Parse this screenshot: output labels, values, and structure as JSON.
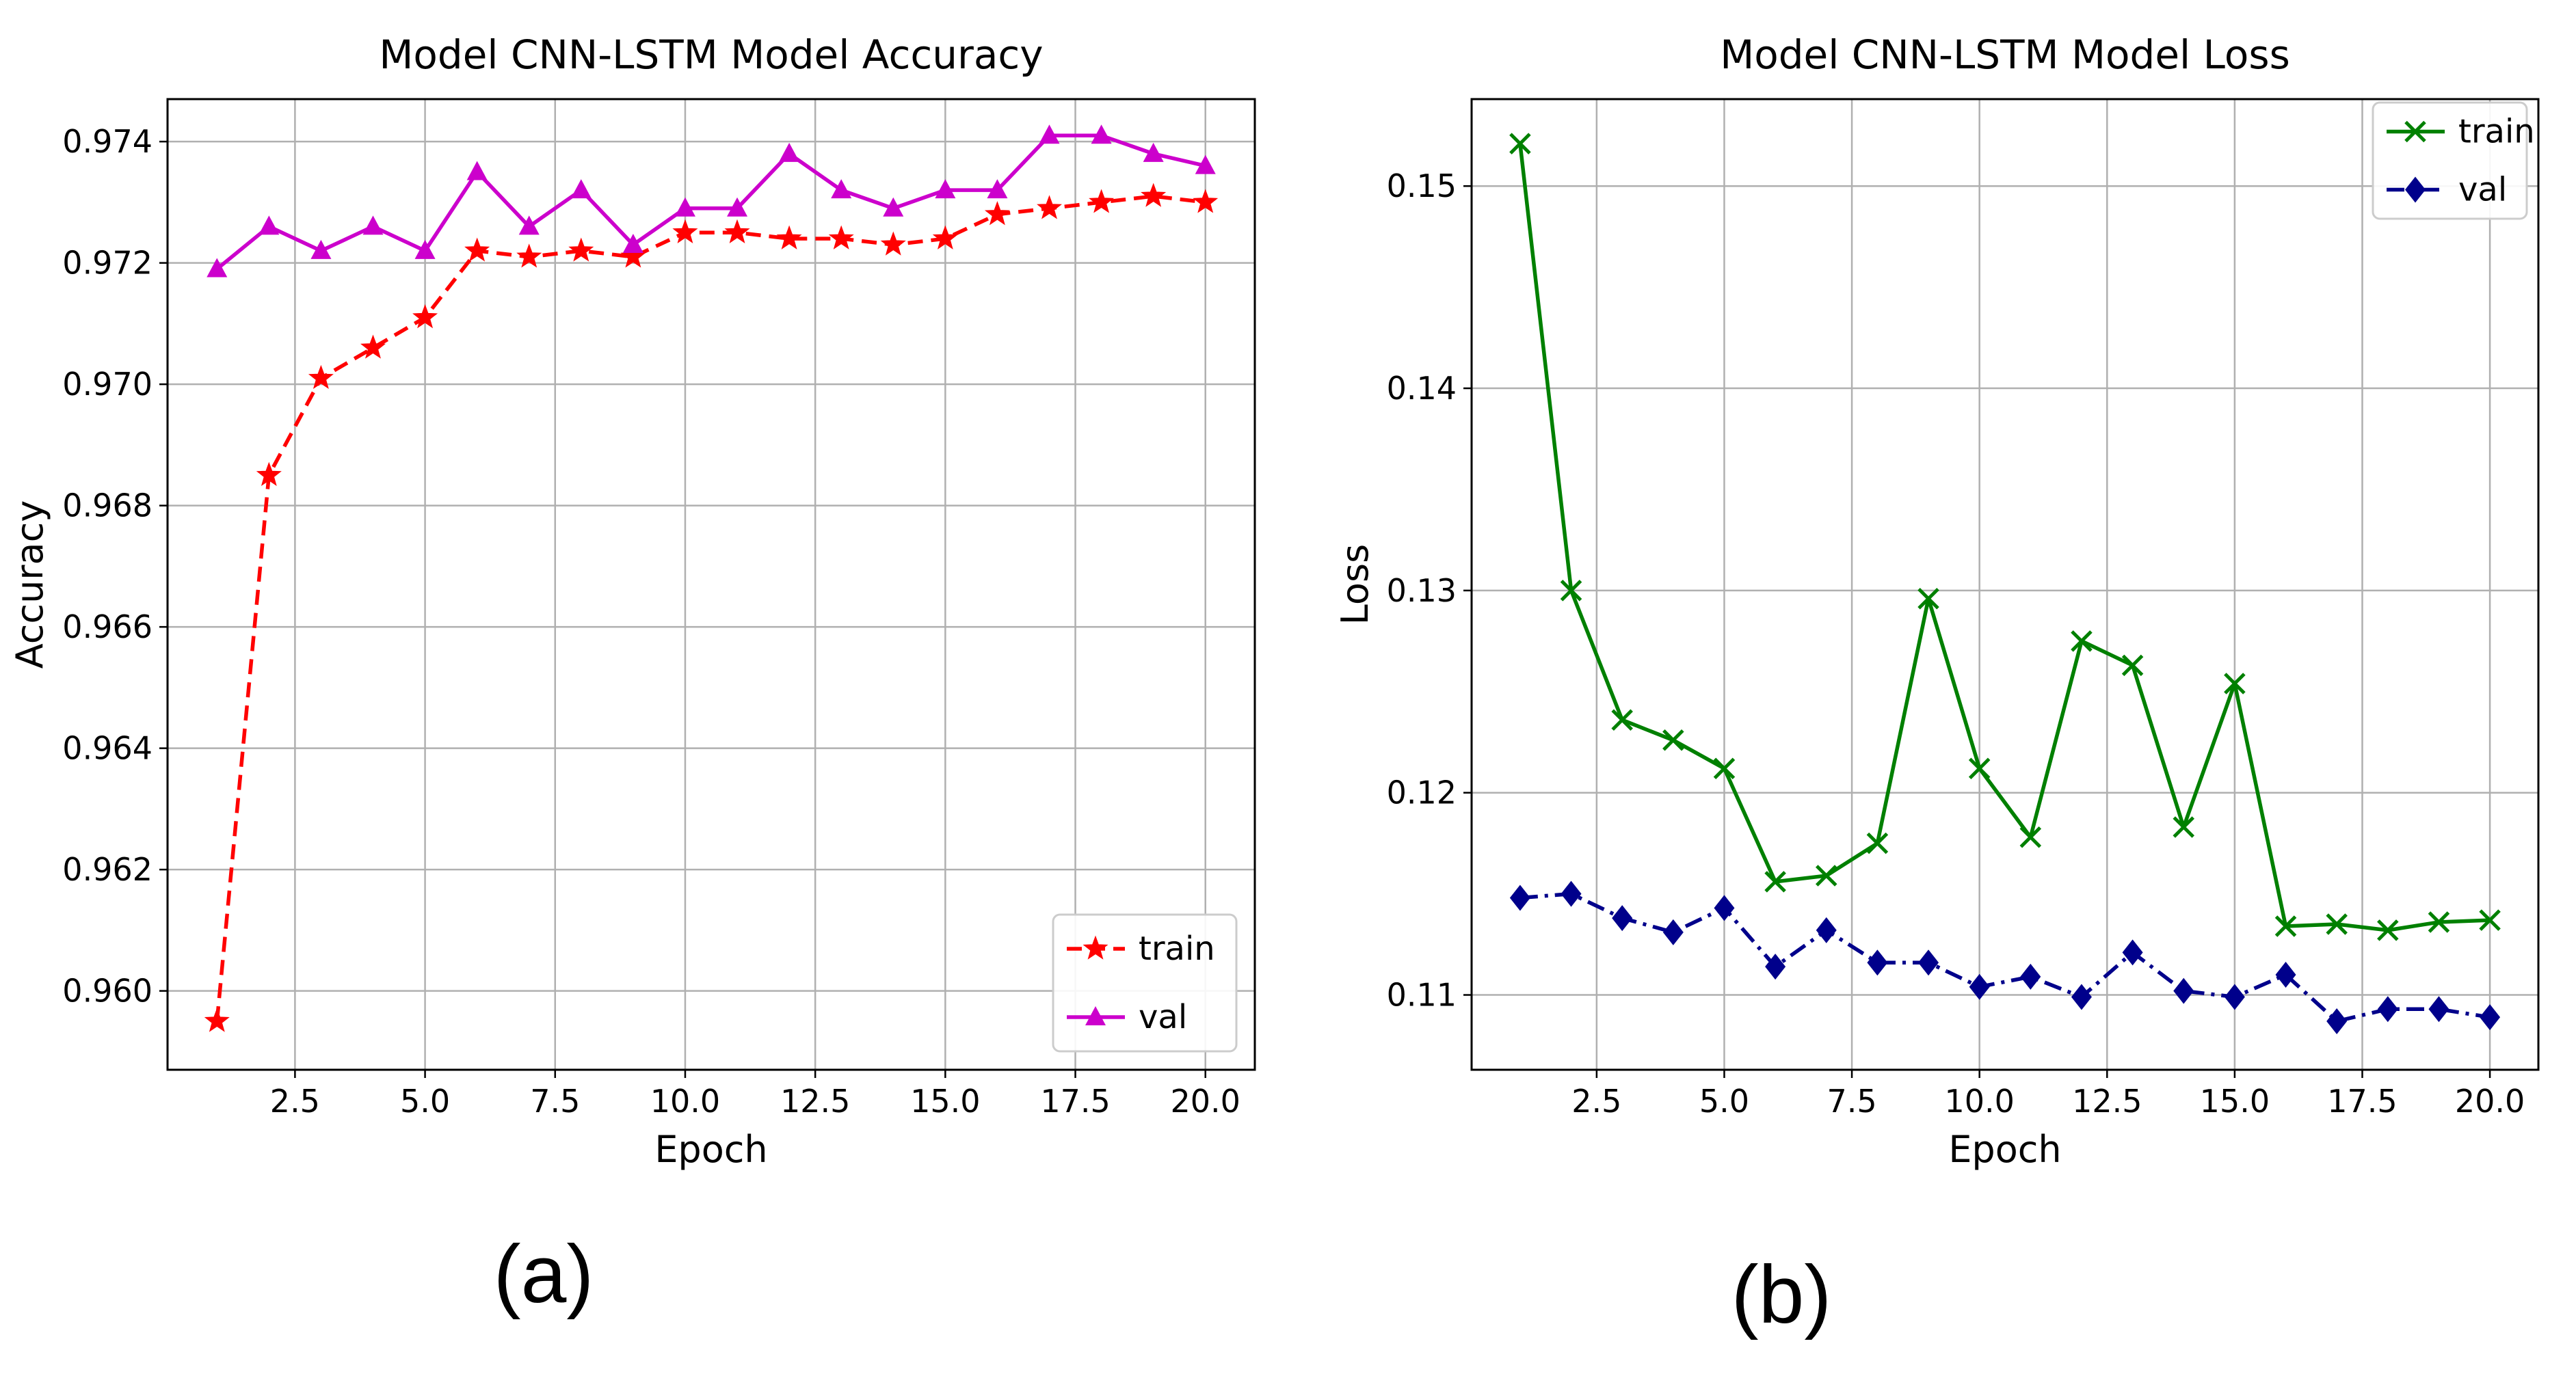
{
  "chart_data": [
    {
      "type": "line",
      "title": "Model CNN-LSTM Model Accuracy",
      "xlabel": "Epoch",
      "ylabel": "Accuracy",
      "panel_label": "(a)",
      "xlim": [
        0.05,
        20.95
      ],
      "ylim": [
        0.9587,
        0.9747
      ],
      "xticks": [
        2.5,
        5.0,
        7.5,
        10.0,
        12.5,
        15.0,
        17.5,
        20.0
      ],
      "xtick_labels": [
        "2.5",
        "5.0",
        "7.5",
        "10.0",
        "12.5",
        "15.0",
        "17.5",
        "20.0"
      ],
      "yticks": [
        0.96,
        0.962,
        0.964,
        0.966,
        0.968,
        0.97,
        0.972,
        0.974
      ],
      "ytick_labels": [
        "0.960",
        "0.962",
        "0.964",
        "0.966",
        "0.968",
        "0.970",
        "0.972",
        "0.974"
      ],
      "grid": true,
      "legend_position": "lower-right",
      "x": [
        1,
        2,
        3,
        4,
        5,
        6,
        7,
        8,
        9,
        10,
        11,
        12,
        13,
        14,
        15,
        16,
        17,
        18,
        19,
        20
      ],
      "series": [
        {
          "name": "train",
          "color": "#ff0000",
          "line_style": "dashed",
          "marker": "star",
          "values": [
            0.9595,
            0.9685,
            0.9701,
            0.9706,
            0.9711,
            0.9722,
            0.9721,
            0.9722,
            0.9721,
            0.9725,
            0.9725,
            0.9724,
            0.9724,
            0.9723,
            0.9724,
            0.9728,
            0.9729,
            0.973,
            0.9731,
            0.973
          ]
        },
        {
          "name": "val",
          "color": "#cc00cc",
          "line_style": "solid",
          "marker": "triangle",
          "values": [
            0.9719,
            0.9726,
            0.9722,
            0.9726,
            0.9722,
            0.9735,
            0.9726,
            0.9732,
            0.9723,
            0.9729,
            0.9729,
            0.9738,
            0.9732,
            0.9729,
            0.9732,
            0.9732,
            0.9741,
            0.9741,
            0.9738,
            0.9736
          ]
        }
      ]
    },
    {
      "type": "line",
      "title": "Model CNN-LSTM Model Loss",
      "xlabel": "Epoch",
      "ylabel": "Loss",
      "panel_label": "(b)",
      "xlim": [
        0.05,
        20.95
      ],
      "ylim": [
        0.1063,
        0.1543
      ],
      "xticks": [
        2.5,
        5.0,
        7.5,
        10.0,
        12.5,
        15.0,
        17.5,
        20.0
      ],
      "xtick_labels": [
        "2.5",
        "5.0",
        "7.5",
        "10.0",
        "12.5",
        "15.0",
        "17.5",
        "20.0"
      ],
      "yticks": [
        0.11,
        0.12,
        0.13,
        0.14,
        0.15
      ],
      "ytick_labels": [
        "0.11",
        "0.12",
        "0.13",
        "0.14",
        "0.15"
      ],
      "grid": true,
      "legend_position": "upper-right",
      "x": [
        1,
        2,
        3,
        4,
        5,
        6,
        7,
        8,
        9,
        10,
        11,
        12,
        13,
        14,
        15,
        16,
        17,
        18,
        19,
        20
      ],
      "series": [
        {
          "name": "train",
          "color": "#008000",
          "line_style": "solid",
          "marker": "x",
          "values": [
            0.1521,
            0.13,
            0.1236,
            0.1226,
            0.1212,
            0.1156,
            0.1159,
            0.1175,
            0.1296,
            0.1212,
            0.1178,
            0.1275,
            0.1263,
            0.1183,
            0.1254,
            0.1134,
            0.1135,
            0.1132,
            0.1136,
            0.1137
          ]
        },
        {
          "name": "val",
          "color": "#00008b",
          "line_style": "dashdot",
          "marker": "diamond",
          "values": [
            0.1148,
            0.115,
            0.1138,
            0.1131,
            0.1143,
            0.1114,
            0.1132,
            0.1116,
            0.1116,
            0.1104,
            0.1109,
            0.1099,
            0.1121,
            0.1102,
            0.1099,
            0.111,
            0.1087,
            0.1093,
            0.1093,
            0.1089
          ]
        }
      ]
    }
  ]
}
